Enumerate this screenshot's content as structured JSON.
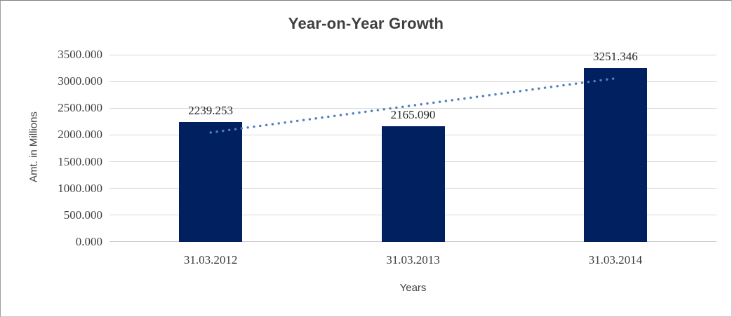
{
  "chart": {
    "title": "Year-on-Year Growth",
    "y_axis_title": "Amt. in Millions",
    "x_axis_title": "Years"
  },
  "chart_data": {
    "type": "bar",
    "title": "Year-on-Year Growth",
    "xlabel": "Years",
    "ylabel": "Amt. in Millions",
    "categories": [
      "31.03.2012",
      "31.03.2013",
      "31.03.2014"
    ],
    "values": [
      2239.253,
      2165.09,
      3251.346
    ],
    "data_labels": [
      "2239.253",
      "2165.090",
      "3251.346"
    ],
    "y_ticks": [
      "0.000",
      "500.000",
      "1000.000",
      "1500.000",
      "2000.000",
      "2500.000",
      "3000.000",
      "3500.000"
    ],
    "ylim": [
      0,
      3500
    ],
    "grid": true,
    "legend_position": "none",
    "bar_color": "#002060",
    "gridline_color": "#d9d9d9",
    "trendline": {
      "type": "linear",
      "style": "dotted",
      "color": "#4f81bd"
    }
  }
}
